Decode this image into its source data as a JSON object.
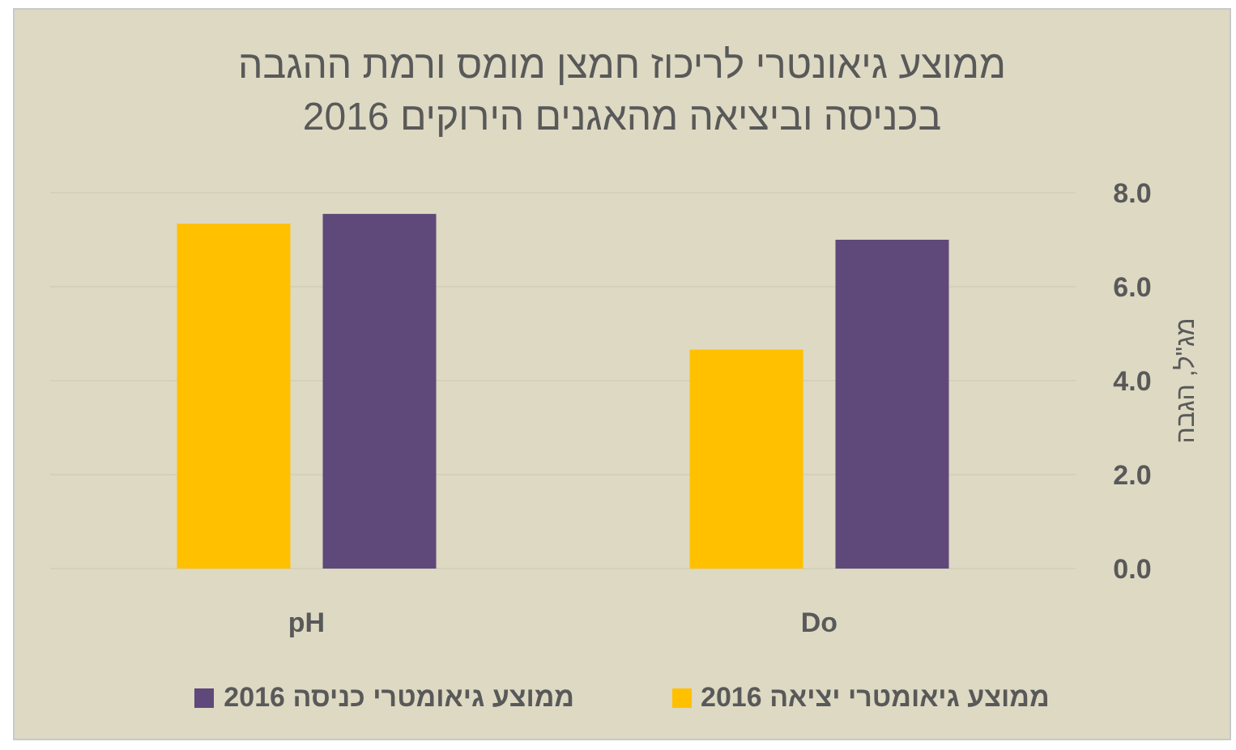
{
  "chart_data": {
    "type": "bar",
    "title": "ממוצע גיאונטרי לריכוז חמצן מומס ורמת ההגבה\nבכניסה וביציאה מהאגנים הירוקים 2016",
    "ylabel": "מג\"ל, הגבה",
    "categories": [
      "pH",
      "Do"
    ],
    "series": [
      {
        "name": "ממוצע גיאומטרי יציאה 2016",
        "color": "#ffc000",
        "values": [
          7.34,
          4.66
        ]
      },
      {
        "name": "ממוצע גיאומטרי כניסה 2016",
        "color": "#5f497a",
        "values": [
          7.55,
          7.0
        ]
      }
    ],
    "ylim": [
      0,
      8
    ],
    "yticks": [
      {
        "value": 0,
        "label": "0.0"
      },
      {
        "value": 2,
        "label": "2.0"
      },
      {
        "value": 4,
        "label": "4.0"
      },
      {
        "value": 6,
        "label": "6.0"
      },
      {
        "value": 8,
        "label": "8.0"
      }
    ],
    "grid": "y",
    "legend": "bottom"
  }
}
